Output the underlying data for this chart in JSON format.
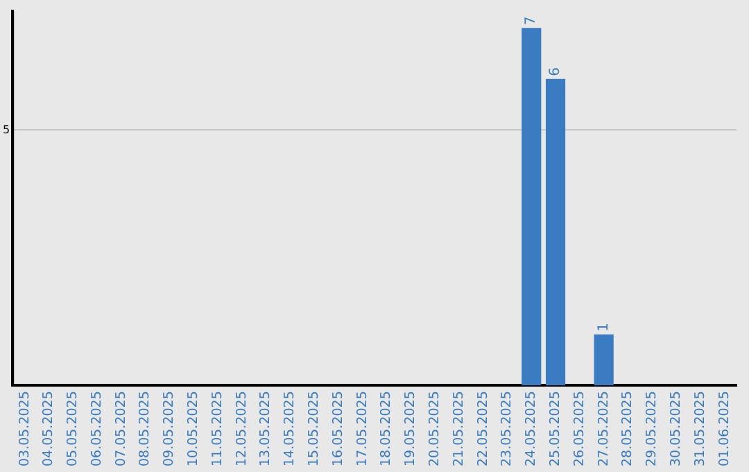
{
  "chart_data": {
    "type": "bar",
    "categories": [
      "03.05.2025",
      "04.05.2025",
      "05.05.2025",
      "06.05.2025",
      "07.05.2025",
      "08.05.2025",
      "09.05.2025",
      "10.05.2025",
      "11.05.2025",
      "12.05.2025",
      "13.05.2025",
      "14.05.2025",
      "15.05.2025",
      "16.05.2025",
      "17.05.2025",
      "18.05.2025",
      "19.05.2025",
      "20.05.2025",
      "21.05.2025",
      "22.05.2025",
      "23.05.2025",
      "24.05.2025",
      "25.05.2025",
      "26.05.2025",
      "27.05.2025",
      "28.05.2025",
      "29.05.2025",
      "30.05.2025",
      "31.05.2025",
      "01.06.2025"
    ],
    "values": [
      null,
      null,
      null,
      null,
      null,
      null,
      null,
      null,
      null,
      null,
      null,
      null,
      null,
      null,
      null,
      null,
      null,
      null,
      null,
      null,
      null,
      7,
      6,
      null,
      1,
      null,
      null,
      null,
      null,
      null
    ],
    "data_labels": true,
    "color": "#3a7bc2",
    "ylim": [
      0,
      7.33
    ],
    "yticks": [
      5
    ],
    "grid": "y",
    "legend": false
  }
}
